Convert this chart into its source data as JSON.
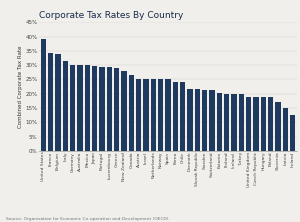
{
  "title": "Corporate Tax Rates By Country",
  "ylabel": "Combined Corporate Tax Rate",
  "source": "Source: Organization for Economic Co-operation and Development (OECD).",
  "bar_color": "#1e3a5f",
  "background_color": "#f0efeb",
  "categories": [
    "United States",
    "France",
    "Belgium",
    "Italy",
    "Germany",
    "Australia",
    "Mexico",
    "Japan",
    "Portugal",
    "Luxembourg",
    "Greece",
    "New Zealand",
    "Canada",
    "Austria",
    "Israel",
    "Netherlands",
    "Norway",
    "Spain",
    "Korea",
    "Chile",
    "Denmark",
    "Slovak Republic",
    "Sweden",
    "Switzerland",
    "Estonia",
    "Finland",
    "Iceland",
    "Turkey",
    "United Kingdom",
    "Czech Republic",
    "Hungary",
    "Poland",
    "Slovenia",
    "Latvia",
    "Ireland"
  ],
  "values": [
    39.1,
    34.4,
    34.0,
    31.4,
    30.2,
    30.0,
    30.0,
    29.7,
    29.5,
    29.2,
    29.0,
    28.0,
    26.7,
    25.0,
    25.0,
    25.0,
    25.0,
    25.0,
    24.2,
    24.0,
    21.7,
    21.6,
    21.4,
    21.2,
    20.1,
    20.0,
    20.0,
    20.0,
    19.0,
    19.0,
    19.0,
    19.0,
    17.0,
    15.0,
    12.5
  ],
  "ylim": [
    0,
    45
  ],
  "yticks": [
    0,
    5,
    10,
    15,
    20,
    25,
    30,
    35,
    40,
    45
  ]
}
